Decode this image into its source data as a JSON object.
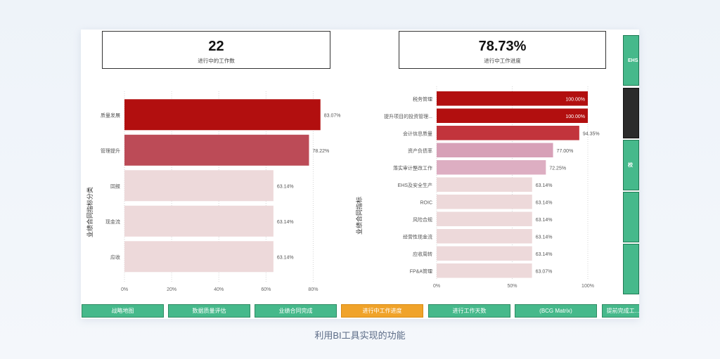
{
  "colors": {
    "nav_green": "#46b98b",
    "nav_active": "#f0a32a",
    "dark_tab": "#2b2b2b",
    "bar_dark_red": "#b20f0f",
    "bar_red": "#c2343c",
    "bar_rose": "#bc4b57",
    "bar_mauve": "#d7a0b7",
    "bar_light": "#edd9da"
  },
  "kpi_left": {
    "value": "22",
    "label": "进行中的工作数"
  },
  "kpi_right": {
    "value": "78.73%",
    "label": "进行中工作进度"
  },
  "chart_data": [
    {
      "type": "bar",
      "orientation": "horizontal",
      "ylabel": "业绩合同指标分类",
      "categories": [
        "质量发展",
        "管理提升",
        "回报",
        "现金流",
        "应收"
      ],
      "values": [
        83.07,
        78.22,
        63.14,
        63.14,
        63.14
      ],
      "value_labels": [
        "83.07%",
        "78.22%",
        "63.14%",
        "63.14%",
        "63.14%"
      ],
      "bar_colors": [
        "#b20f0f",
        "#bc4b57",
        "#edd9da",
        "#edd9da",
        "#edd9da"
      ],
      "xlim": [
        0,
        90
      ],
      "xticks": [
        0,
        20,
        40,
        60,
        80
      ],
      "xtick_labels": [
        "0%",
        "20%",
        "40%",
        "60%",
        "80%"
      ]
    },
    {
      "type": "bar",
      "orientation": "horizontal",
      "ylabel": "业绩合同指标",
      "categories": [
        "税务管理",
        "提升项目的投资管理...",
        "会计信息质量",
        "资产负债率",
        "落实审计整改工作",
        "EHS及安全生产",
        "ROIC",
        "风险合规",
        "经营性现金流",
        "应收周转",
        "FP&A管理"
      ],
      "values": [
        100.0,
        100.0,
        94.35,
        77.0,
        72.25,
        63.14,
        63.14,
        63.14,
        63.14,
        63.14,
        63.07
      ],
      "value_labels": [
        "100.00%",
        "100.00%",
        "94.35%",
        "77.00%",
        "72.25%",
        "63.14%",
        "63.14%",
        "63.14%",
        "63.14%",
        "63.14%",
        "63.07%"
      ],
      "bar_colors": [
        "#b20f0f",
        "#b20f0f",
        "#c2343c",
        "#d7a0b7",
        "#ddaec2",
        "#edd9da",
        "#edd9da",
        "#edd9da",
        "#edd9da",
        "#edd9da",
        "#edd9da"
      ],
      "inside_labels": [
        true,
        true,
        false,
        false,
        false,
        false,
        false,
        false,
        false,
        false,
        false
      ],
      "xlim": [
        0,
        100
      ],
      "xticks": [
        0,
        50,
        100
      ],
      "xtick_labels": [
        "0%",
        "50%",
        "100%"
      ]
    }
  ],
  "right_tabs": [
    {
      "label": "EHS...",
      "style": "green"
    },
    {
      "label": "",
      "style": "dark"
    },
    {
      "label": "校",
      "style": "green"
    },
    {
      "label": "",
      "style": "green"
    },
    {
      "label": "",
      "style": "green"
    }
  ],
  "nav_buttons": [
    {
      "label": "战略地图",
      "active": false
    },
    {
      "label": "数据质量评估",
      "active": false
    },
    {
      "label": "业绩合同完成",
      "active": false
    },
    {
      "label": "进行中工作进度",
      "active": true
    },
    {
      "label": "进行工作天数",
      "active": false
    },
    {
      "label": "(BCG Matrix)",
      "active": false
    },
    {
      "label": "提前完成工...",
      "active": false
    }
  ],
  "caption": "利用BI工具实现的功能"
}
